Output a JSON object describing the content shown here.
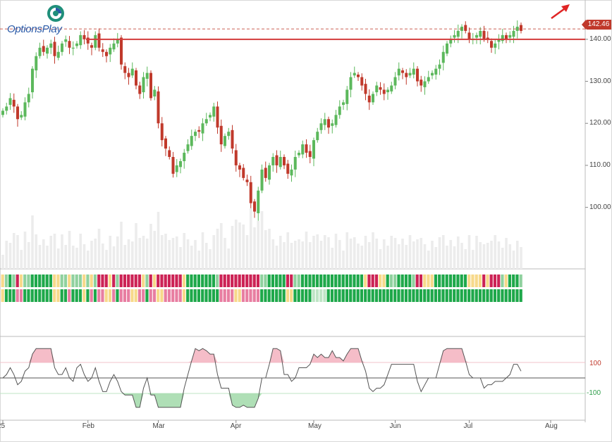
{
  "brand": {
    "logo_text": "OptionsPlay",
    "logo_icon": "optionsplay-logo-icon"
  },
  "price_tag": "142.46",
  "y_ticks": [
    {
      "value": 140,
      "label": "140.00"
    },
    {
      "value": 130,
      "label": "130.00"
    },
    {
      "value": 120,
      "label": "120.00"
    },
    {
      "value": 110,
      "label": "110.00"
    },
    {
      "value": 100,
      "label": "100.00"
    }
  ],
  "x_ticks": [
    {
      "day": 0,
      "label": "25"
    },
    {
      "day": 23,
      "label": "Feb"
    },
    {
      "day": 42,
      "label": "Mar"
    },
    {
      "day": 63,
      "label": "Apr"
    },
    {
      "day": 84,
      "label": "May"
    },
    {
      "day": 106,
      "label": "Jun"
    },
    {
      "day": 126,
      "label": "Jul"
    },
    {
      "day": 148,
      "label": "Aug"
    }
  ],
  "osc_labels": {
    "upper": "100",
    "lower": "-100"
  },
  "colors": {
    "up": "#5cb85c",
    "down": "#c0392b",
    "resistance": "#d33c3c",
    "osc_pos": "#f4b6c2",
    "osc_neg": "#a6dcae",
    "arrow": "#e02424"
  },
  "chart_data": {
    "type": "candlestick",
    "ylim": [
      93,
      145
    ],
    "resistance_level": 140,
    "last_price": 142.46,
    "x_axis": "trading days, ~Jan 2025 to Aug 2025",
    "closes": [
      123,
      124,
      126,
      124,
      121,
      122,
      125,
      127,
      133,
      136,
      138,
      137,
      138,
      139,
      136,
      137,
      139,
      140,
      138,
      138,
      139,
      141,
      140,
      139,
      138,
      141,
      138,
      137,
      136,
      138,
      139,
      140,
      134,
      132,
      131,
      133,
      129,
      127,
      131,
      132,
      126,
      128,
      120,
      116,
      114,
      112,
      108,
      110,
      111,
      113,
      115,
      117,
      118,
      118,
      120,
      121,
      122,
      124,
      119,
      115,
      117,
      118,
      114,
      110,
      109,
      107,
      106,
      101,
      99,
      104,
      109,
      107,
      110,
      112,
      110,
      112,
      110,
      108,
      109,
      112,
      113,
      115,
      113,
      112,
      116,
      118,
      120,
      121,
      119,
      120,
      122,
      124,
      125,
      128,
      131,
      132,
      131,
      129,
      127,
      125,
      127,
      129,
      128,
      127,
      128,
      129,
      131,
      133,
      132,
      131,
      132,
      133,
      130,
      129,
      130,
      131,
      132,
      133,
      134,
      137,
      139,
      140,
      141,
      142,
      143,
      142,
      140,
      140,
      141,
      142,
      140,
      140,
      138,
      139,
      140,
      141,
      140,
      141,
      142,
      143,
      142
    ],
    "volume_scale": "relative",
    "oscillator_range": [
      -200,
      200
    ]
  }
}
